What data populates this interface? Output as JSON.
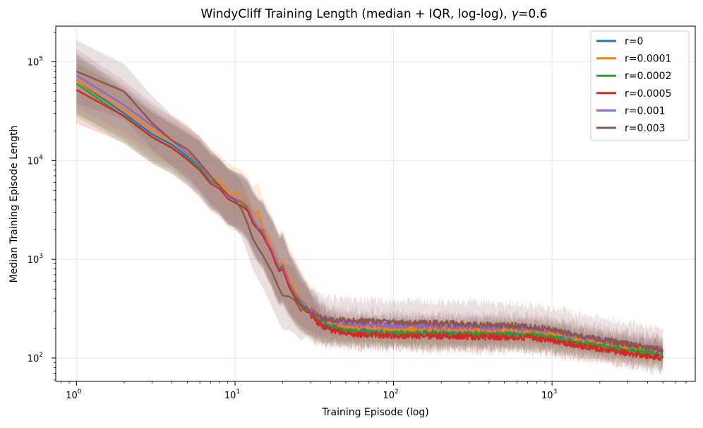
{
  "chart_data": {
    "type": "line",
    "title": "WindyCliff Training Length (median + IQR, log-log), γ=0.6",
    "title_prefix": "WindyCliff Training Length (median + IQR, log-log), ",
    "title_gamma_symbol": "γ",
    "title_gamma_value": "=0.6",
    "xlabel": "Training Episode (log)",
    "ylabel": "Median Training Episode Length",
    "xscale": "log",
    "yscale": "log",
    "xlim": [
      0.74,
      8000
    ],
    "ylim": [
      58,
      230000
    ],
    "grid": true,
    "legend_position": "top-right",
    "x_ticks": [
      {
        "value": 1,
        "base": "10",
        "exp": "0"
      },
      {
        "value": 10,
        "base": "10",
        "exp": "1"
      },
      {
        "value": 100,
        "base": "10",
        "exp": "2"
      },
      {
        "value": 1000,
        "base": "10",
        "exp": "3"
      }
    ],
    "y_ticks": [
      {
        "value": 100,
        "base": "10",
        "exp": "2"
      },
      {
        "value": 1000,
        "base": "10",
        "exp": "3"
      },
      {
        "value": 10000,
        "base": "10",
        "exp": "4"
      },
      {
        "value": 100000,
        "base": "10",
        "exp": "5"
      }
    ],
    "series": [
      {
        "name": "r=0",
        "color": "#1f77b4",
        "offset": 0.0,
        "x": [
          1,
          2,
          3,
          4,
          5,
          6,
          7,
          8,
          9,
          10,
          11,
          12,
          13,
          14,
          15,
          16,
          17,
          18,
          19,
          20,
          22,
          24,
          26,
          28,
          30,
          35,
          40,
          50,
          60,
          80,
          100,
          150,
          200,
          300,
          500,
          700,
          1000,
          1500,
          2000,
          3000,
          5000
        ],
        "median": [
          65000,
          30000,
          18500,
          14500,
          11000,
          8500,
          6200,
          5600,
          4400,
          4000,
          3800,
          3300,
          2500,
          2000,
          1900,
          1450,
          1250,
          980,
          800,
          850,
          550,
          430,
          360,
          320,
          290,
          230,
          210,
          195,
          190,
          185,
          185,
          183,
          182,
          180,
          180,
          178,
          168,
          148,
          138,
          125,
          112
        ],
        "q1": [
          30000,
          16000,
          10000,
          8000,
          6000,
          4500,
          3300,
          2900,
          2300,
          2100,
          1900,
          1600,
          1200,
          950,
          850,
          650,
          550,
          430,
          360,
          370,
          280,
          230,
          200,
          185,
          170,
          150,
          145,
          140,
          138,
          135,
          135,
          133,
          132,
          131,
          130,
          129,
          123,
          111,
          104,
          95,
          86
        ],
        "q3": [
          120000,
          55000,
          33000,
          25000,
          20000,
          16000,
          12000,
          10500,
          8500,
          7600,
          7200,
          6300,
          4900,
          4000,
          3800,
          3000,
          2600,
          2100,
          1700,
          1800,
          1150,
          900,
          700,
          560,
          470,
          330,
          290,
          265,
          260,
          255,
          255,
          252,
          250,
          247,
          246,
          244,
          230,
          202,
          188,
          170,
          152
        ]
      },
      {
        "name": "r=0.0001",
        "color": "#ff7f0e",
        "offset": 0.02,
        "x": [
          1,
          2,
          3,
          4,
          5,
          6,
          7,
          8,
          9,
          10,
          11,
          12,
          13,
          14,
          15,
          16,
          17,
          18,
          19,
          20,
          22,
          24,
          26,
          28,
          30,
          35,
          40,
          50,
          60,
          80,
          100,
          150,
          200,
          300,
          500,
          700,
          1000,
          1500,
          2000,
          3000,
          5000
        ],
        "median": [
          62000,
          31000,
          19500,
          15000,
          11500,
          9000,
          6600,
          5900,
          4600,
          4400,
          4000,
          3500,
          2600,
          2900,
          2000,
          1600,
          1300,
          1000,
          820,
          900,
          600,
          470,
          380,
          330,
          300,
          240,
          220,
          200,
          195,
          190,
          188,
          186,
          185,
          184,
          182,
          180,
          170,
          150,
          140,
          126,
          113
        ],
        "q1": [
          28000,
          16500,
          10500,
          8200,
          6200,
          4700,
          3500,
          3000,
          2400,
          2300,
          2000,
          1700,
          1250,
          1300,
          900,
          700,
          570,
          440,
          370,
          390,
          290,
          235,
          205,
          188,
          172,
          152,
          147,
          142,
          140,
          137,
          136,
          134,
          133,
          132,
          131,
          130,
          124,
          112,
          105,
          96,
          87
        ],
        "q3": [
          115000,
          56000,
          34000,
          26000,
          21000,
          17000,
          12500,
          11000,
          8900,
          8200,
          7600,
          6600,
          5100,
          5600,
          4000,
          3300,
          2700,
          2200,
          1750,
          1900,
          1250,
          980,
          740,
          580,
          490,
          345,
          300,
          270,
          265,
          260,
          258,
          255,
          253,
          250,
          248,
          246,
          232,
          204,
          190,
          172,
          154
        ]
      },
      {
        "name": "r=0.0002",
        "color": "#2ca02c",
        "offset": -0.02,
        "x": [
          1,
          2,
          3,
          4,
          5,
          6,
          7,
          8,
          9,
          10,
          11,
          12,
          13,
          14,
          15,
          16,
          17,
          18,
          19,
          20,
          22,
          24,
          26,
          28,
          30,
          35,
          40,
          50,
          60,
          80,
          100,
          150,
          200,
          300,
          500,
          700,
          1000,
          1500,
          2000,
          3000,
          5000
        ],
        "median": [
          63000,
          29000,
          18000,
          14000,
          11000,
          8800,
          6500,
          5800,
          4500,
          4300,
          3900,
          3400,
          2550,
          2100,
          1950,
          1500,
          1270,
          990,
          810,
          870,
          560,
          440,
          370,
          325,
          295,
          235,
          212,
          197,
          192,
          187,
          186,
          184,
          183,
          181,
          180,
          178,
          167,
          147,
          137,
          124,
          111
        ],
        "q1": [
          29000,
          15500,
          9800,
          7800,
          6000,
          4600,
          3400,
          2950,
          2350,
          2200,
          1950,
          1650,
          1220,
          980,
          870,
          670,
          560,
          435,
          365,
          375,
          282,
          232,
          202,
          186,
          171,
          151,
          146,
          141,
          139,
          136,
          135,
          133,
          132,
          131,
          130,
          129,
          122,
          110,
          103,
          94,
          85
        ],
        "q3": [
          118000,
          54000,
          32500,
          24500,
          20000,
          16500,
          12200,
          10800,
          8700,
          8000,
          7400,
          6500,
          5000,
          4200,
          3900,
          3100,
          2650,
          2150,
          1720,
          1850,
          1180,
          920,
          720,
          570,
          480,
          335,
          292,
          267,
          262,
          257,
          256,
          253,
          251,
          248,
          246,
          244,
          229,
          201,
          187,
          169,
          151
        ]
      },
      {
        "name": "r=0.0005",
        "color": "#d62728",
        "offset": -0.04,
        "x": [
          1,
          2,
          3,
          4,
          5,
          6,
          7,
          8,
          9,
          10,
          11,
          12,
          13,
          14,
          15,
          16,
          17,
          18,
          19,
          20,
          22,
          24,
          26,
          28,
          30,
          35,
          40,
          50,
          60,
          80,
          100,
          150,
          200,
          300,
          500,
          700,
          1000,
          1500,
          2000,
          3000,
          5000
        ],
        "median": [
          57000,
          31000,
          19000,
          14800,
          11200,
          8700,
          6400,
          5700,
          4500,
          4100,
          3800,
          3400,
          2500,
          2200,
          1900,
          1550,
          1300,
          1000,
          830,
          870,
          570,
          440,
          370,
          325,
          295,
          235,
          212,
          196,
          190,
          186,
          185,
          183,
          182,
          180,
          179,
          177,
          166,
          146,
          136,
          123,
          110
        ],
        "q1": [
          26000,
          16500,
          10300,
          8000,
          6100,
          4600,
          3400,
          2950,
          2350,
          2150,
          1950,
          1650,
          1200,
          1000,
          860,
          680,
          570,
          440,
          370,
          375,
          285,
          232,
          202,
          186,
          171,
          151,
          146,
          140,
          138,
          135,
          134,
          132,
          131,
          130,
          129,
          128,
          121,
          109,
          102,
          93,
          84
        ],
        "q3": [
          108000,
          56000,
          33500,
          25500,
          20500,
          16800,
          12300,
          10700,
          8700,
          7800,
          7300,
          6500,
          4900,
          4400,
          3800,
          3200,
          2700,
          2200,
          1770,
          1850,
          1200,
          920,
          720,
          570,
          480,
          335,
          292,
          266,
          260,
          256,
          255,
          252,
          250,
          247,
          245,
          243,
          228,
          200,
          186,
          168,
          150
        ]
      },
      {
        "name": "r=0.001",
        "color": "#9467bd",
        "offset": 0.03,
        "x": [
          1,
          2,
          3,
          4,
          5,
          6,
          7,
          8,
          9,
          10,
          11,
          12,
          13,
          14,
          15,
          16,
          17,
          18,
          19,
          20,
          22,
          24,
          26,
          28,
          30,
          35,
          40,
          50,
          60,
          80,
          100,
          150,
          200,
          300,
          500,
          700,
          1000,
          1500,
          2000,
          3000,
          5000
        ],
        "median": [
          68000,
          34000,
          21000,
          15000,
          11000,
          8400,
          6000,
          5300,
          4000,
          3800,
          3600,
          3200,
          2400,
          1950,
          1850,
          1400,
          1200,
          950,
          780,
          820,
          540,
          420,
          360,
          320,
          290,
          240,
          225,
          210,
          205,
          200,
          198,
          196,
          195,
          193,
          190,
          187,
          175,
          153,
          142,
          128,
          114
        ],
        "q1": [
          32000,
          18000,
          11500,
          8300,
          6000,
          4500,
          3200,
          2800,
          2100,
          2000,
          1850,
          1600,
          1180,
          930,
          830,
          640,
          540,
          420,
          350,
          360,
          275,
          225,
          200,
          185,
          170,
          155,
          150,
          146,
          144,
          141,
          140,
          138,
          137,
          136,
          134,
          132,
          126,
          114,
          106,
          97,
          88
        ],
        "q3": [
          125000,
          60000,
          36000,
          26000,
          20000,
          16000,
          11800,
          10000,
          7800,
          7200,
          6900,
          6100,
          4700,
          3900,
          3700,
          2900,
          2500,
          2050,
          1680,
          1750,
          1130,
          880,
          700,
          560,
          470,
          345,
          310,
          285,
          280,
          275,
          272,
          268,
          266,
          263,
          259,
          255,
          238,
          208,
          193,
          174,
          155
        ]
      },
      {
        "name": "r=0.003",
        "color": "#8c564b",
        "offset": 0.0,
        "x": [
          1,
          2,
          3,
          4,
          5,
          6,
          7,
          8,
          9,
          10,
          11,
          12,
          13,
          14,
          15,
          16,
          17,
          18,
          19,
          20,
          22,
          24,
          26,
          28,
          30,
          35,
          40,
          50,
          60,
          80,
          100,
          150,
          200,
          300,
          500,
          700,
          1000,
          1500,
          2000,
          3000,
          5000
        ],
        "median": [
          80000,
          50000,
          24000,
          16000,
          13000,
          9500,
          7000,
          5500,
          4500,
          4000,
          3200,
          2300,
          1600,
          1300,
          1100,
          900,
          760,
          620,
          500,
          430,
          420,
          380,
          300,
          330,
          290,
          255,
          245,
          240,
          238,
          235,
          232,
          228,
          225,
          220,
          215,
          210,
          195,
          168,
          155,
          138,
          120
        ],
        "q1": [
          38000,
          26000,
          13000,
          8800,
          7100,
          5100,
          3700,
          2900,
          2350,
          2100,
          1650,
          1150,
          780,
          620,
          510,
          410,
          340,
          275,
          225,
          195,
          190,
          175,
          150,
          165,
          150,
          140,
          138,
          136,
          135,
          133,
          131,
          129,
          127,
          125,
          122,
          119,
          112,
          98,
          91,
          82,
          72
        ],
        "q3": [
          165000,
          95000,
          45000,
          29000,
          23000,
          17500,
          13000,
          10200,
          8400,
          7500,
          6100,
          4500,
          3200,
          2650,
          2250,
          1850,
          1580,
          1300,
          1050,
          900,
          880,
          780,
          580,
          610,
          520,
          440,
          410,
          395,
          392,
          387,
          382,
          376,
          370,
          362,
          353,
          345,
          320,
          276,
          254,
          226,
          196
        ]
      }
    ]
  }
}
